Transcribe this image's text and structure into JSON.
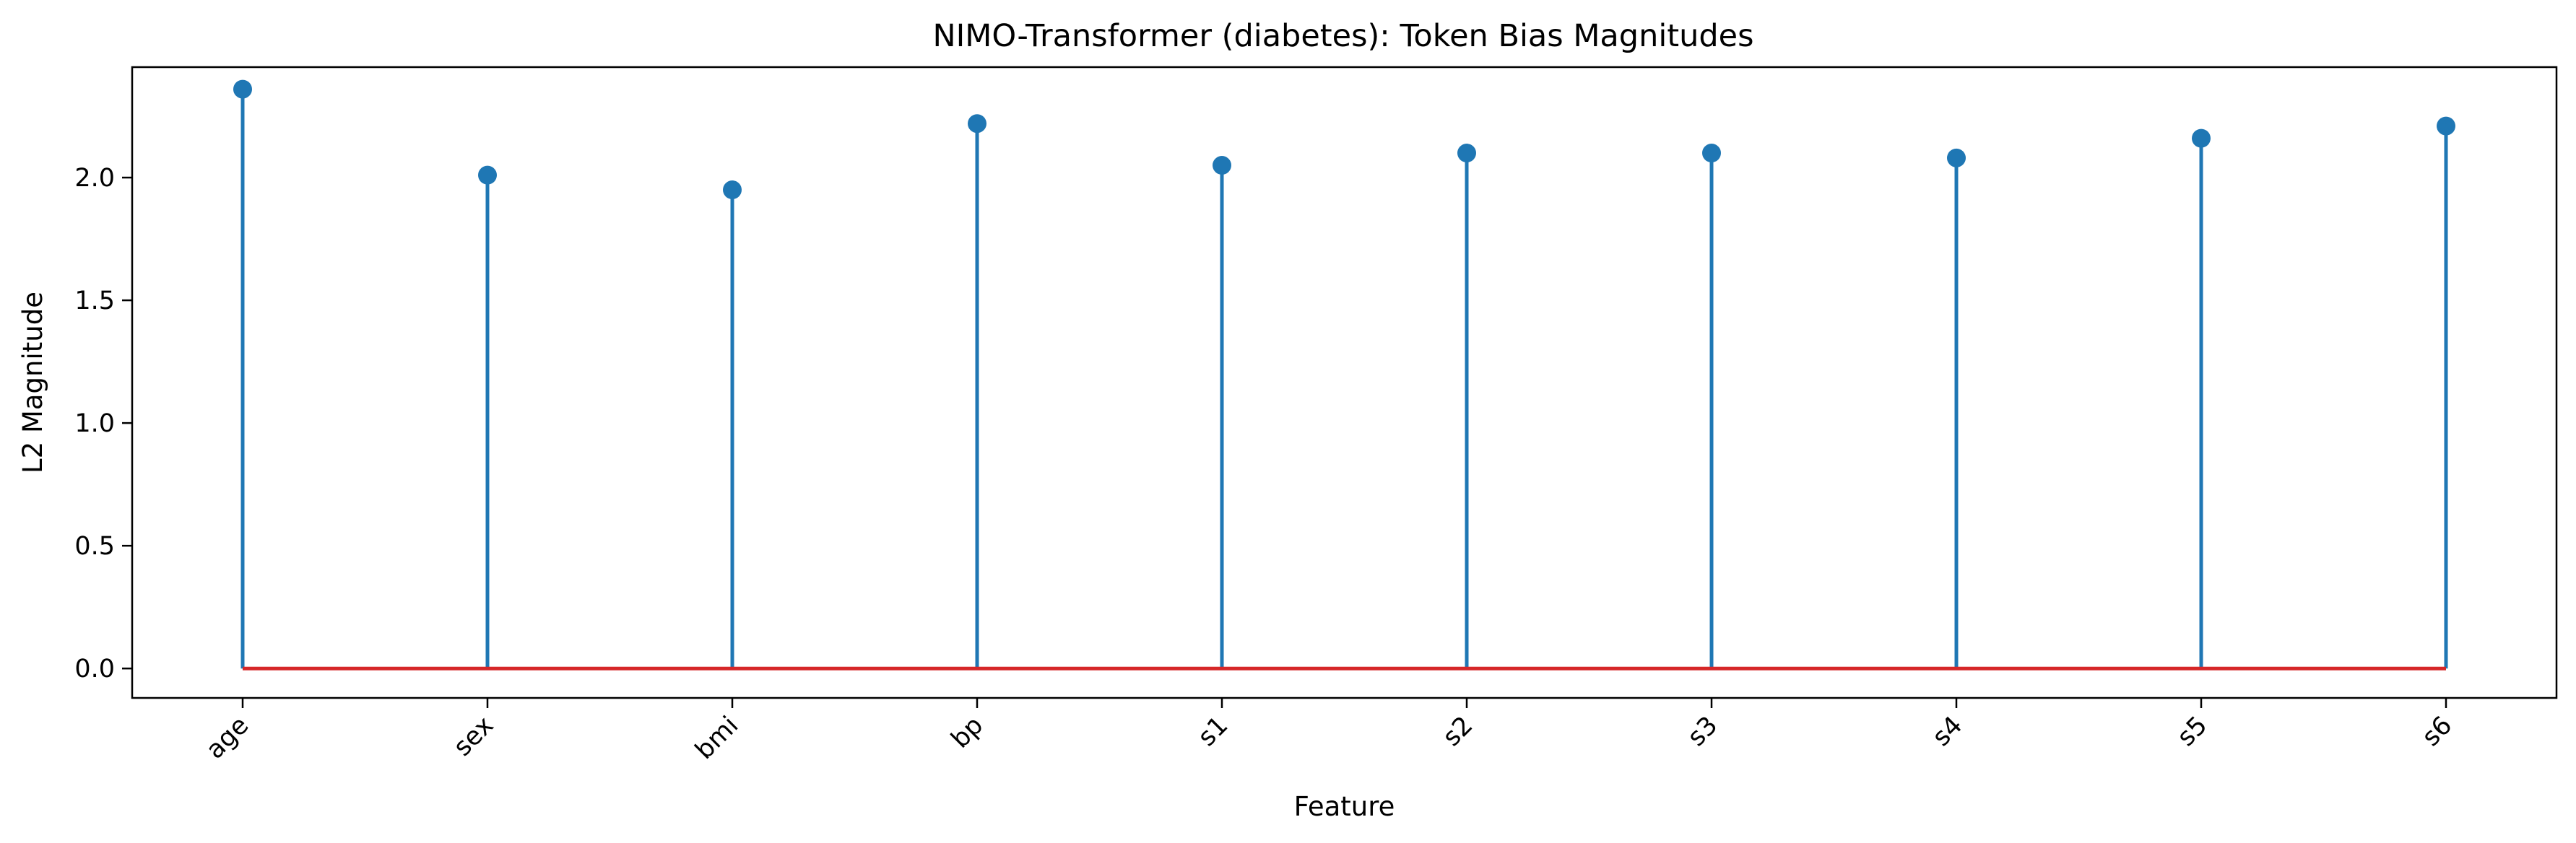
{
  "chart_data": {
    "type": "stem",
    "title": "NIMO-Transformer (diabetes): Token Bias Magnitudes",
    "xlabel": "Feature",
    "ylabel": "L2 Magnitude",
    "categories": [
      "age",
      "sex",
      "bmi",
      "bp",
      "s1",
      "s2",
      "s3",
      "s4",
      "s5",
      "s6"
    ],
    "values": [
      2.36,
      2.01,
      1.95,
      2.22,
      2.05,
      2.1,
      2.1,
      2.08,
      2.16,
      2.21
    ],
    "ylim": [
      -0.12,
      2.45
    ],
    "yticks": [
      0.0,
      0.5,
      1.0,
      1.5,
      2.0
    ],
    "ytick_labels": [
      "0.0",
      "0.5",
      "1.0",
      "1.5",
      "2.0"
    ],
    "baseline": 0.0,
    "grid": false,
    "colors": {
      "stem": "#1f77b4",
      "marker": "#1f77b4",
      "baseline": "#d62728"
    }
  }
}
